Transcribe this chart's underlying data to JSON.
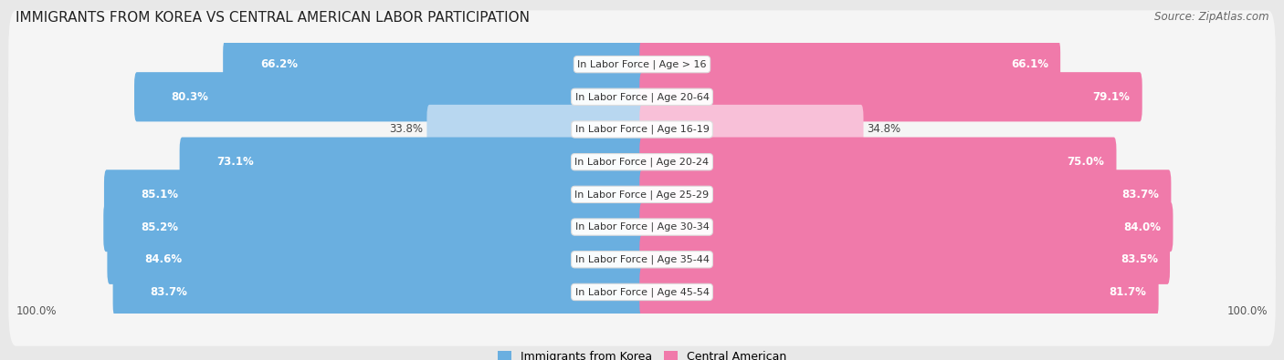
{
  "title": "IMMIGRANTS FROM KOREA VS CENTRAL AMERICAN LABOR PARTICIPATION",
  "source": "Source: ZipAtlas.com",
  "categories": [
    "In Labor Force | Age > 16",
    "In Labor Force | Age 20-64",
    "In Labor Force | Age 16-19",
    "In Labor Force | Age 20-24",
    "In Labor Force | Age 25-29",
    "In Labor Force | Age 30-34",
    "In Labor Force | Age 35-44",
    "In Labor Force | Age 45-54"
  ],
  "korea_values": [
    66.2,
    80.3,
    33.8,
    73.1,
    85.1,
    85.2,
    84.6,
    83.7
  ],
  "central_values": [
    66.1,
    79.1,
    34.8,
    75.0,
    83.7,
    84.0,
    83.5,
    81.7
  ],
  "korea_color": "#6aafe0",
  "korea_color_light": "#b8d7f0",
  "central_color": "#f07aaa",
  "central_color_light": "#f8c0d8",
  "bar_height": 0.72,
  "background_color": "#e8e8e8",
  "row_bg_color": "#f5f5f5",
  "label_fontsize": 8.0,
  "value_fontsize": 8.5,
  "title_fontsize": 11,
  "legend_fontsize": 9,
  "light_threshold": 50
}
